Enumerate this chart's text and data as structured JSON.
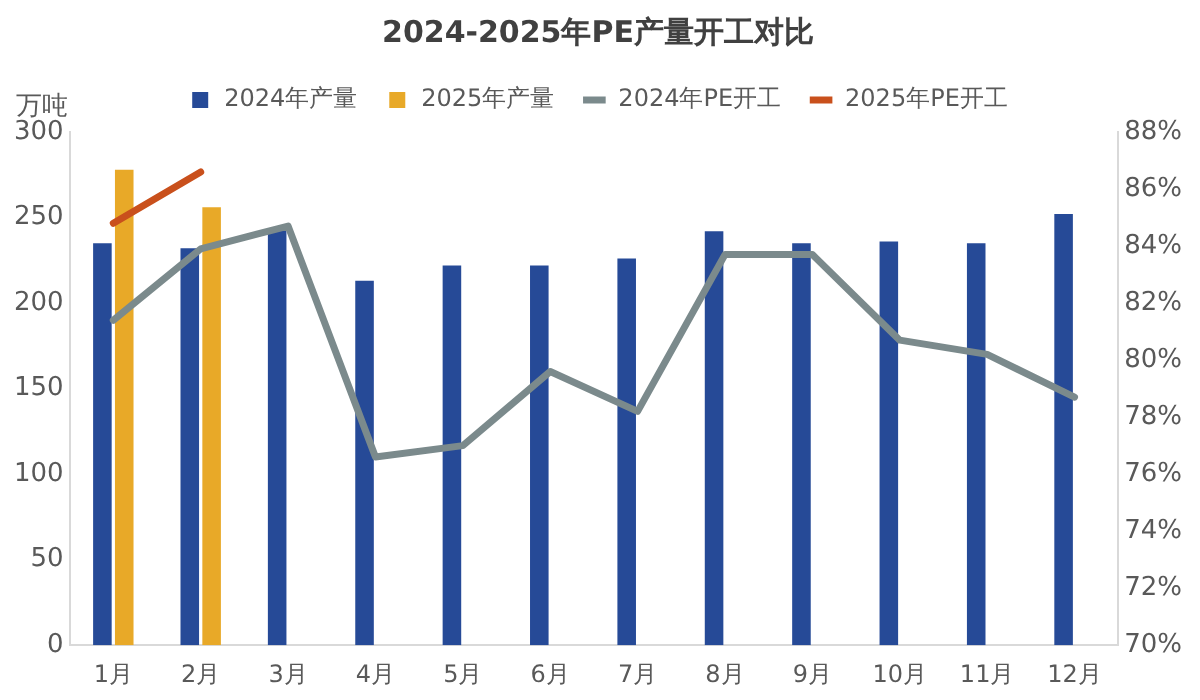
{
  "chart_data": {
    "type": "bar",
    "title": "2024-2025年PE产量开工对比",
    "ylabel": "万吨",
    "categories": [
      "1月",
      "2月",
      "3月",
      "4月",
      "5月",
      "6月",
      "7月",
      "8月",
      "9月",
      "10月",
      "11月",
      "12月"
    ],
    "series": [
      {
        "name": "2024年产量",
        "color": "#264a97",
        "values": [
          235,
          232,
          243,
          213,
          222,
          222,
          226,
          242,
          235,
          236,
          235,
          252
        ]
      },
      {
        "name": "2025年产量",
        "color": "#e8a928",
        "values": [
          278,
          256,
          null,
          null,
          null,
          null,
          null,
          null,
          null,
          null,
          null,
          null
        ]
      },
      {
        "name": "2024年PE开工",
        "type": "line",
        "axis": "y2",
        "color": "#7b8a8c",
        "values": [
          81.4,
          83.9,
          84.7,
          76.6,
          77.0,
          79.6,
          78.2,
          83.7,
          83.7,
          80.7,
          80.2,
          78.7
        ]
      },
      {
        "name": "2025年PE开工",
        "type": "line",
        "axis": "y2",
        "color": "#c9501c",
        "values": [
          84.8,
          86.6,
          null,
          null,
          null,
          null,
          null,
          null,
          null,
          null,
          null,
          null
        ]
      }
    ],
    "ylim": [
      0,
      300
    ],
    "yticks": [
      0,
      50,
      100,
      150,
      200,
      250,
      300
    ],
    "y2lim": [
      70,
      88
    ],
    "y2ticks": [
      {
        "value": 70,
        "label": "70%"
      },
      {
        "value": 72,
        "label": "72%"
      },
      {
        "value": 74,
        "label": "74%"
      },
      {
        "value": 76,
        "label": "76%"
      },
      {
        "value": 78,
        "label": "78%"
      },
      {
        "value": 80,
        "label": "80%"
      },
      {
        "value": 82,
        "label": "82%"
      },
      {
        "value": 84,
        "label": "84%"
      },
      {
        "value": 86,
        "label": "86%"
      },
      {
        "value": 88,
        "label": "88%"
      }
    ],
    "legend": "top",
    "grid": false,
    "marker": "none",
    "line_style": "solid"
  }
}
